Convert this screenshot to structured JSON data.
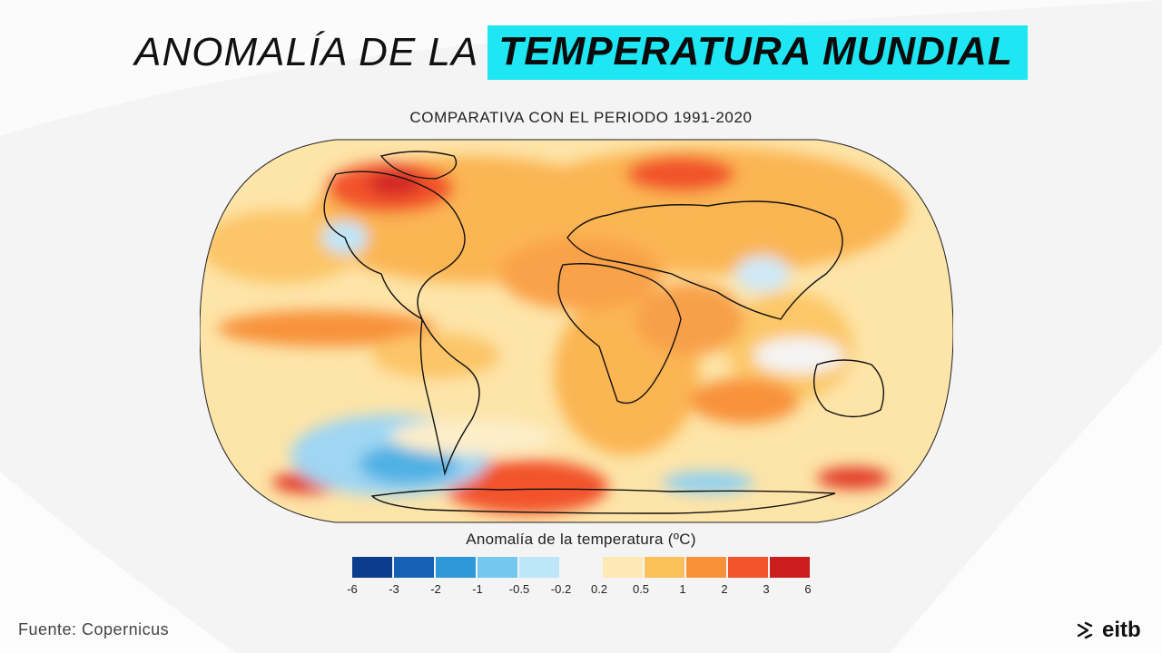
{
  "title": {
    "light": "ANOMALÍA DE LA",
    "highlight": "TEMPERATURA MUNDIAL"
  },
  "subtitle": "COMPARATIVA CON EL PERIODO 1991-2020",
  "legend": {
    "title": "Anomalía de la temperatura (ºC)",
    "ticks": [
      "-6",
      "-3",
      "-2",
      "-1",
      "-0.5",
      "-0.2",
      "0.2",
      "0.5",
      "1",
      "2",
      "3",
      "6"
    ],
    "colors": [
      "#0c3d8c",
      "#1660b5",
      "#2f98d8",
      "#74c8ef",
      "#bde6fa",
      "#f4f4f4",
      "#fde8b6",
      "#fcc05a",
      "#f8923a",
      "#f2532a",
      "#cc1d1d"
    ]
  },
  "source": "Fuente: Copernicus",
  "logo": {
    "text": "eitb",
    "icon": "eitb-logo-icon"
  }
}
